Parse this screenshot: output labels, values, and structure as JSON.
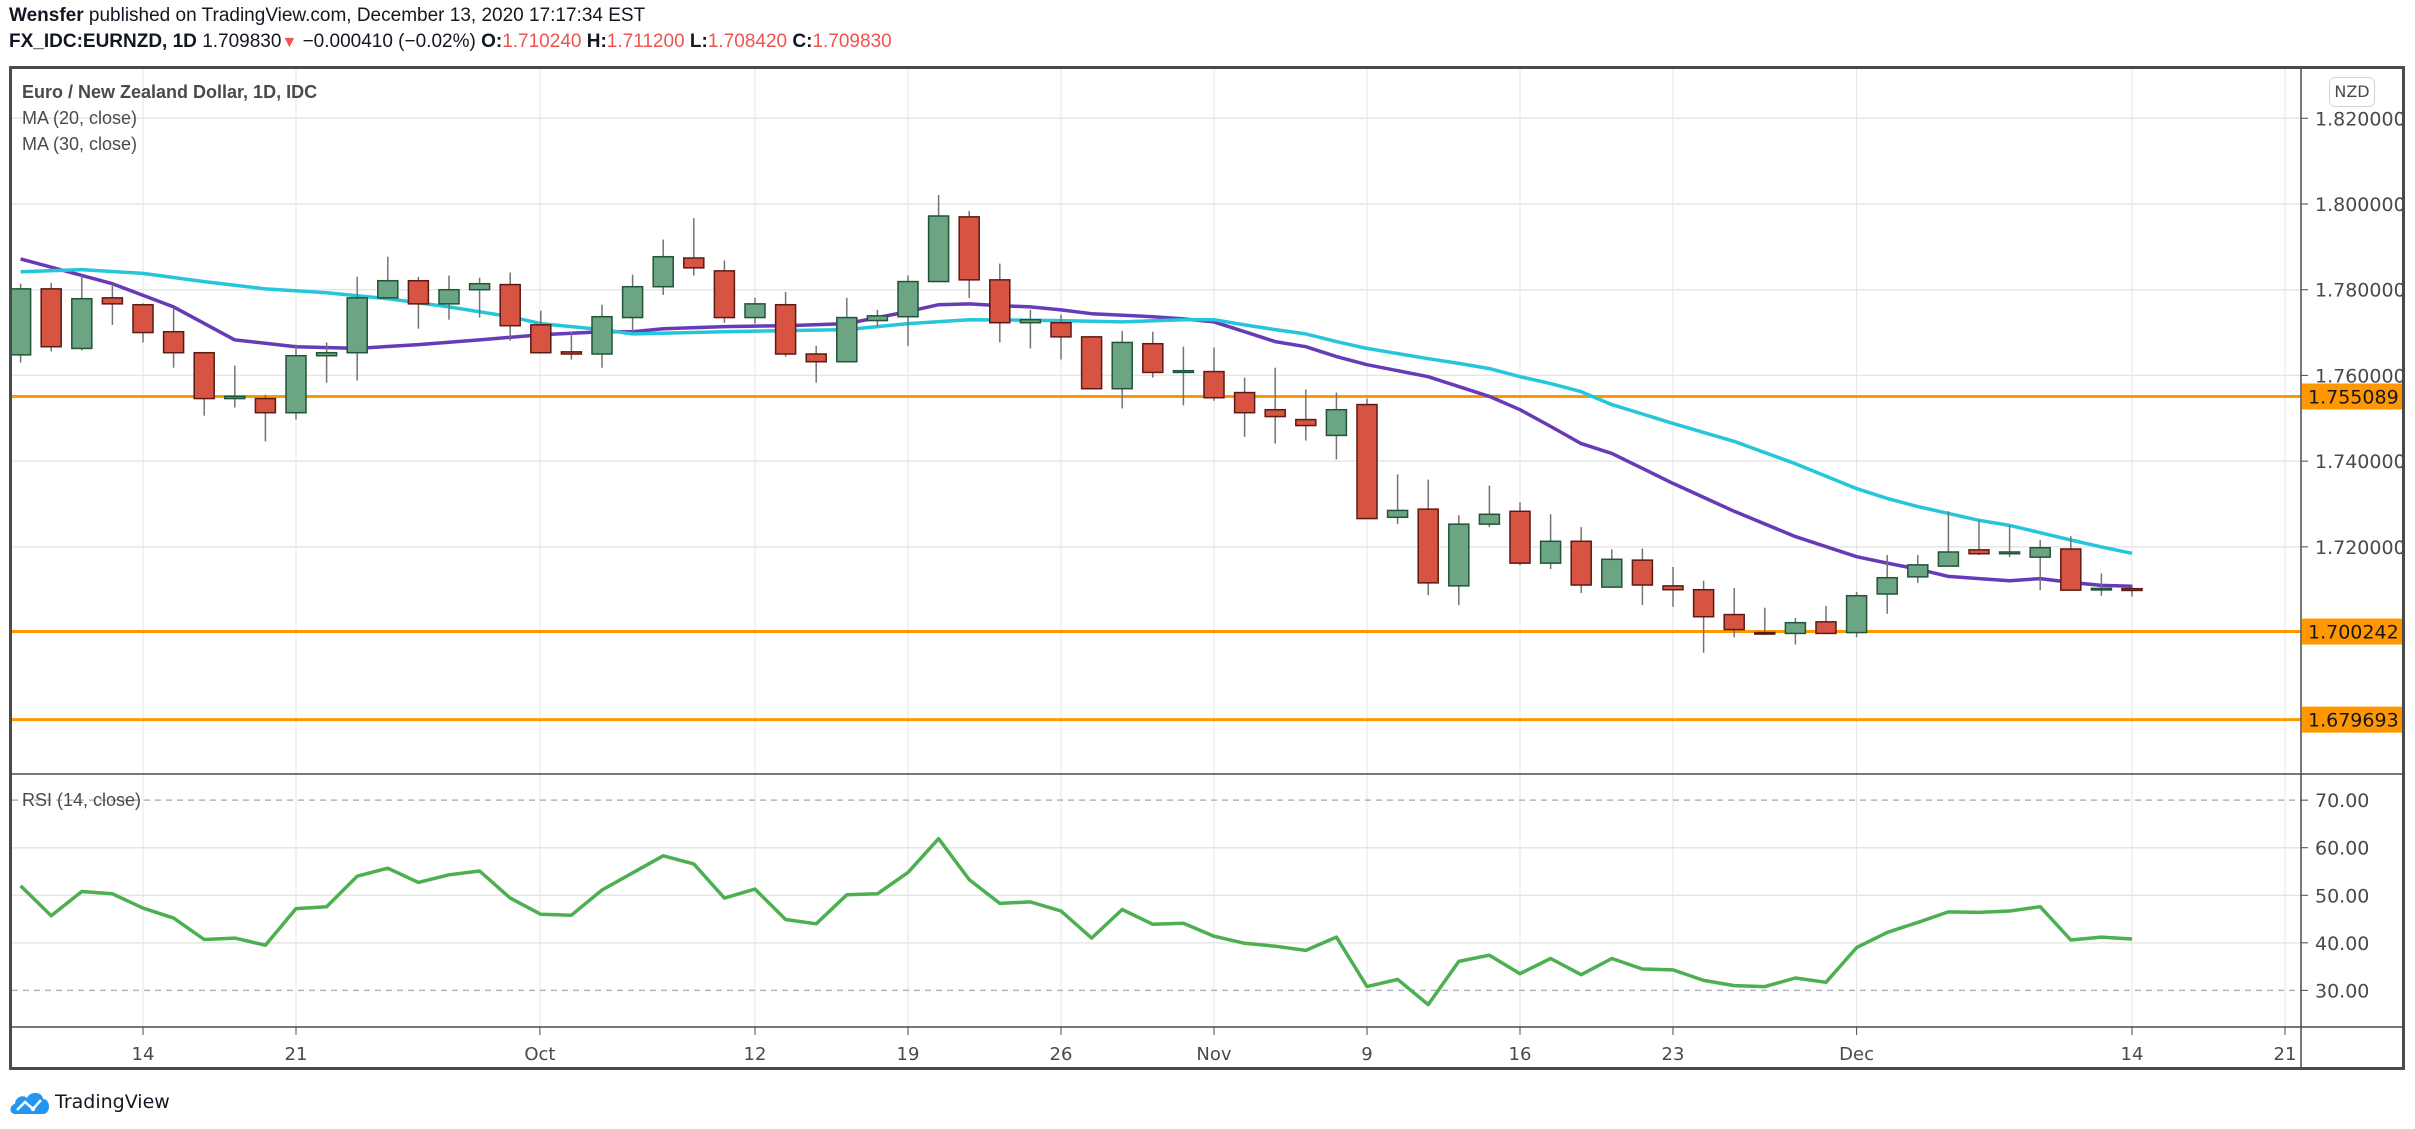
{
  "header": {
    "author": "Wensfer",
    "published_text": "published on TradingView.com, December 13, 2020 17:17:34 EST",
    "symbol": "FX_IDC:EURNZD, 1D",
    "last_price": "1.709830",
    "direction_icon": "down-triangle-icon",
    "change": "−0.000410 (−0.02%)",
    "open_label": "O:",
    "open": "1.710240",
    "high_label": "H:",
    "high": "1.711200",
    "low_label": "L:",
    "low": "1.708420",
    "close_label": "C:",
    "close": "1.709830"
  },
  "legend": {
    "title": "Euro / New Zealand Dollar, 1D, IDC",
    "ma20": "MA (20, close)",
    "ma30": "MA (30, close)",
    "rsi": "RSI (14, close)"
  },
  "currency_badge": "NZD",
  "footer": {
    "logo_icon": "tradingview-cloud-icon",
    "brand": "TradingView"
  },
  "colors": {
    "up": "#6ba583",
    "up_border": "#225437",
    "down": "#d75442",
    "down_border": "#5b1a13",
    "ma20": "#673ab7",
    "ma30": "#26c6da",
    "hline": "#ff9800",
    "rsi": "#4caf50"
  },
  "chart_data": [
    {
      "type": "candlestick",
      "title": "Euro / New Zealand Dollar, 1D, IDC",
      "ylim": [
        1.667,
        1.8315
      ],
      "y_ticks": [
        "1.820000",
        "1.800000",
        "1.780000",
        "1.760000",
        "1.740000",
        "1.720000"
      ],
      "y_tick_values": [
        1.82,
        1.8,
        1.78,
        1.76,
        1.74,
        1.72
      ],
      "x_ticks": [
        {
          "label": "14",
          "index": 4
        },
        {
          "label": "21",
          "index": 9
        },
        {
          "label": "Oct",
          "index": 16.97
        },
        {
          "label": "12",
          "index": 24
        },
        {
          "label": "19",
          "index": 29
        },
        {
          "label": "26",
          "index": 34
        },
        {
          "label": "Nov",
          "index": 39
        },
        {
          "label": "9",
          "index": 44
        },
        {
          "label": "16",
          "index": 49
        },
        {
          "label": "23",
          "index": 54
        },
        {
          "label": "Dec",
          "index": 60
        },
        {
          "label": "14",
          "index": 69
        },
        {
          "label": "21",
          "index": 74
        }
      ],
      "x_index_max": 74.5,
      "horizontal_lines": [
        {
          "value": 1.755089,
          "label": "1.755089"
        },
        {
          "value": 1.700242,
          "label": "1.700242"
        },
        {
          "value": 1.679693,
          "label": "1.679693"
        }
      ],
      "ohlc": [
        [
          1.7648,
          1.7814,
          1.763,
          1.7802
        ],
        [
          1.7802,
          1.7816,
          1.7656,
          1.7667
        ],
        [
          1.7663,
          1.7835,
          1.7658,
          1.7779
        ],
        [
          1.7781,
          1.7814,
          1.7718,
          1.7767
        ],
        [
          1.7765,
          1.7768,
          1.7677,
          1.77
        ],
        [
          1.7702,
          1.7758,
          1.7618,
          1.7653
        ],
        [
          1.7653,
          1.7655,
          1.7506,
          1.7546
        ],
        [
          1.7546,
          1.7623,
          1.7525,
          1.7551
        ],
        [
          1.7546,
          1.7555,
          1.7446,
          1.7513
        ],
        [
          1.7513,
          1.7672,
          1.7497,
          1.7646
        ],
        [
          1.7646,
          1.7677,
          1.7583,
          1.7653
        ],
        [
          1.7653,
          1.783,
          1.7588,
          1.7781
        ],
        [
          1.7781,
          1.7877,
          1.7781,
          1.7821
        ],
        [
          1.7821,
          1.783,
          1.7709,
          1.7767
        ],
        [
          1.7767,
          1.7833,
          1.773,
          1.78
        ],
        [
          1.78,
          1.7828,
          1.7735,
          1.7814
        ],
        [
          1.7812,
          1.784,
          1.7681,
          1.7716
        ],
        [
          1.7718,
          1.7751,
          1.7651,
          1.7653
        ],
        [
          1.7655,
          1.7702,
          1.7637,
          1.765
        ],
        [
          1.765,
          1.7765,
          1.7618,
          1.7737
        ],
        [
          1.7735,
          1.7835,
          1.77,
          1.7807
        ],
        [
          1.7807,
          1.7917,
          1.7788,
          1.7877
        ],
        [
          1.7874,
          1.7967,
          1.7833,
          1.7851
        ],
        [
          1.7844,
          1.7868,
          1.7723,
          1.7735
        ],
        [
          1.7735,
          1.7781,
          1.7721,
          1.7767
        ],
        [
          1.7765,
          1.7795,
          1.7644,
          1.765
        ],
        [
          1.765,
          1.7669,
          1.7583,
          1.7632
        ],
        [
          1.7632,
          1.7781,
          1.7632,
          1.7735
        ],
        [
          1.7728,
          1.7753,
          1.7714,
          1.7739
        ],
        [
          1.7737,
          1.7833,
          1.7669,
          1.7819
        ],
        [
          1.7819,
          1.8021,
          1.7819,
          1.7972
        ],
        [
          1.797,
          1.7984,
          1.7781,
          1.7823
        ],
        [
          1.7823,
          1.7861,
          1.7677,
          1.7723
        ],
        [
          1.7723,
          1.7753,
          1.7663,
          1.773
        ],
        [
          1.7723,
          1.7742,
          1.7637,
          1.769
        ],
        [
          1.769,
          1.7692,
          1.7569,
          1.7569
        ],
        [
          1.7569,
          1.7704,
          1.7523,
          1.7677
        ],
        [
          1.7674,
          1.7702,
          1.7595,
          1.7607
        ],
        [
          1.7607,
          1.7667,
          1.753,
          1.7611
        ],
        [
          1.7609,
          1.7665,
          1.7541,
          1.7548
        ],
        [
          1.756,
          1.7595,
          1.7457,
          1.7513
        ],
        [
          1.752,
          1.7618,
          1.7441,
          1.7504
        ],
        [
          1.7497,
          1.7567,
          1.7448,
          1.7483
        ],
        [
          1.746,
          1.756,
          1.7404,
          1.752
        ],
        [
          1.7532,
          1.7546,
          1.7266,
          1.7266
        ],
        [
          1.7269,
          1.7369,
          1.7253,
          1.7285
        ],
        [
          1.7288,
          1.7357,
          1.7087,
          1.7116
        ],
        [
          1.7109,
          1.7274,
          1.7064,
          1.7253
        ],
        [
          1.7253,
          1.7343,
          1.7246,
          1.7276
        ],
        [
          1.7283,
          1.7304,
          1.7157,
          1.7162
        ],
        [
          1.7162,
          1.7276,
          1.7148,
          1.7213
        ],
        [
          1.7213,
          1.7246,
          1.7092,
          1.7111
        ],
        [
          1.7106,
          1.7194,
          1.7106,
          1.7171
        ],
        [
          1.7169,
          1.7196,
          1.7064,
          1.7111
        ],
        [
          1.7109,
          1.7153,
          1.706,
          1.71
        ],
        [
          1.71,
          1.7121,
          1.6953,
          1.7037
        ],
        [
          1.7042,
          1.7104,
          1.6989,
          1.7007
        ],
        [
          1.7,
          1.7058,
          1.6994,
          1.6998
        ],
        [
          1.6998,
          1.7034,
          1.6972,
          1.7023
        ],
        [
          1.7025,
          1.7062,
          1.6998,
          1.6998
        ],
        [
          1.7,
          1.7095,
          1.6989,
          1.7086
        ],
        [
          1.709,
          1.7181,
          1.7044,
          1.7128
        ],
        [
          1.713,
          1.7181,
          1.7116,
          1.7158
        ],
        [
          1.7155,
          1.7283,
          1.7155,
          1.7188
        ],
        [
          1.7193,
          1.7262,
          1.7181,
          1.7184
        ],
        [
          1.7184,
          1.7251,
          1.7176,
          1.7188
        ],
        [
          1.7176,
          1.7216,
          1.7099,
          1.7198
        ],
        [
          1.7195,
          1.7225,
          1.7099,
          1.7099
        ],
        [
          1.7102,
          1.7138,
          1.7086,
          1.7103
        ],
        [
          1.71024,
          1.7112,
          1.70842,
          1.70983
        ]
      ],
      "series": [
        {
          "name": "MA (20, close)",
          "points": [
            [
              0,
              1.7872
            ],
            [
              3,
              1.7814
            ],
            [
              5,
              1.776
            ],
            [
              7,
              1.7683
            ],
            [
              9,
              1.7667
            ],
            [
              11,
              1.7663
            ],
            [
              13,
              1.7672
            ],
            [
              15,
              1.7683
            ],
            [
              17,
              1.7695
            ],
            [
              19,
              1.7702
            ],
            [
              20,
              1.7702
            ],
            [
              21,
              1.7709
            ],
            [
              23,
              1.7714
            ],
            [
              25,
              1.7716
            ],
            [
              27,
              1.7721
            ],
            [
              29,
              1.7749
            ],
            [
              30,
              1.7765
            ],
            [
              31,
              1.7767
            ],
            [
              32,
              1.7763
            ],
            [
              33,
              1.776
            ],
            [
              34,
              1.7753
            ],
            [
              35,
              1.7744
            ],
            [
              37,
              1.7737
            ],
            [
              38,
              1.7732
            ],
            [
              39,
              1.7725
            ],
            [
              40,
              1.7702
            ],
            [
              41,
              1.7679
            ],
            [
              42,
              1.7667
            ],
            [
              43,
              1.7644
            ],
            [
              44,
              1.7625
            ],
            [
              46,
              1.7597
            ],
            [
              47,
              1.7574
            ],
            [
              48,
              1.7551
            ],
            [
              49,
              1.752
            ],
            [
              50,
              1.7481
            ],
            [
              51,
              1.7441
            ],
            [
              52,
              1.7418
            ],
            [
              54,
              1.7348
            ],
            [
              56,
              1.7283
            ],
            [
              58,
              1.7224
            ],
            [
              60,
              1.7177
            ],
            [
              61,
              1.7162
            ],
            [
              62,
              1.7148
            ],
            [
              63,
              1.7131
            ],
            [
              64,
              1.7126
            ],
            [
              65,
              1.7121
            ],
            [
              66,
              1.7126
            ],
            [
              67,
              1.7117
            ],
            [
              68,
              1.711
            ],
            [
              69,
              1.7108
            ]
          ]
        },
        {
          "name": "MA (30, close)",
          "points": [
            [
              0,
              1.7842
            ],
            [
              2,
              1.7847
            ],
            [
              4,
              1.7838
            ],
            [
              6,
              1.7819
            ],
            [
              8,
              1.7802
            ],
            [
              10,
              1.7793
            ],
            [
              12,
              1.7779
            ],
            [
              14,
              1.776
            ],
            [
              16,
              1.7737
            ],
            [
              17,
              1.7721
            ],
            [
              19,
              1.7707
            ],
            [
              20,
              1.7697
            ],
            [
              23,
              1.7702
            ],
            [
              27,
              1.7707
            ],
            [
              29,
              1.7721
            ],
            [
              31,
              1.773
            ],
            [
              34,
              1.7728
            ],
            [
              36,
              1.7725
            ],
            [
              38,
              1.773
            ],
            [
              39,
              1.773
            ],
            [
              40,
              1.7718
            ],
            [
              41,
              1.7707
            ],
            [
              42,
              1.7697
            ],
            [
              43,
              1.7679
            ],
            [
              44,
              1.7663
            ],
            [
              46,
              1.7639
            ],
            [
              47,
              1.7628
            ],
            [
              48,
              1.7616
            ],
            [
              49,
              1.7597
            ],
            [
              50,
              1.7581
            ],
            [
              51,
              1.7562
            ],
            [
              52,
              1.7532
            ],
            [
              54,
              1.7488
            ],
            [
              56,
              1.7446
            ],
            [
              58,
              1.7394
            ],
            [
              60,
              1.7336
            ],
            [
              61,
              1.7313
            ],
            [
              62,
              1.7294
            ],
            [
              63,
              1.7278
            ],
            [
              64,
              1.7262
            ],
            [
              65,
              1.725
            ],
            [
              66,
              1.7233
            ],
            [
              67,
              1.7216
            ],
            [
              68,
              1.72
            ],
            [
              69,
              1.7185
            ]
          ]
        }
      ]
    },
    {
      "type": "line",
      "title": "RSI (14, close)",
      "ylim": [
        22.3,
        75.5
      ],
      "y_ticks": [
        "70.00",
        "60.00",
        "50.00",
        "40.00",
        "30.00"
      ],
      "y_tick_values": [
        70,
        60,
        50,
        40,
        30
      ],
      "dashed_levels": [
        70,
        30
      ],
      "values": [
        52.0,
        45.7,
        50.8,
        50.3,
        47.3,
        45.2,
        40.7,
        41.0,
        39.5,
        47.2,
        47.6,
        54.0,
        55.7,
        52.7,
        54.3,
        55.1,
        49.4,
        46.0,
        45.8,
        51.1,
        54.7,
        58.3,
        56.6,
        49.4,
        51.3,
        44.9,
        44.0,
        50.1,
        50.3,
        54.8,
        61.9,
        53.3,
        48.3,
        48.6,
        46.7,
        41.0,
        47.0,
        43.9,
        44.1,
        41.4,
        39.9,
        39.3,
        38.4,
        41.2,
        30.8,
        32.3,
        27.0,
        36.1,
        37.4,
        33.5,
        36.7,
        33.3,
        36.7,
        34.5,
        34.3,
        32.1,
        31.0,
        30.8,
        32.6,
        31.7,
        39.0,
        42.2,
        44.3,
        46.5,
        46.4,
        46.7,
        47.6,
        40.6,
        41.2,
        40.8
      ]
    }
  ]
}
